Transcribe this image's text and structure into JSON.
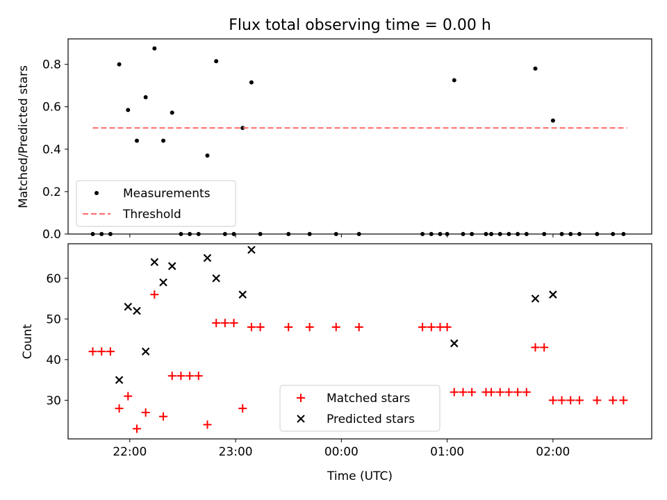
{
  "chart_data": [
    {
      "type": "scatter",
      "title": "Flux total observing time = 0.00 h",
      "xlabel": "",
      "ylabel": "Matched/Predicted stars",
      "xlim": [
        "21:25",
        "02:56"
      ],
      "ylim": [
        0.0,
        0.92
      ],
      "xticks": [
        "22:00",
        "23:00",
        "00:00",
        "01:00",
        "02:00"
      ],
      "yticks": [
        "0.0",
        "0.2",
        "0.4",
        "0.6",
        "0.8"
      ],
      "legend": "lower-left",
      "series": [
        {
          "name": "Measurements",
          "marker": "dot",
          "color": "#000000",
          "points": [
            [
              "21:39",
              0.0
            ],
            [
              "21:44",
              0.0
            ],
            [
              "21:49",
              0.0
            ],
            [
              "21:54",
              0.8
            ],
            [
              "21:59",
              0.585
            ],
            [
              "22:04",
              0.44
            ],
            [
              "22:09",
              0.645
            ],
            [
              "22:14",
              0.875
            ],
            [
              "22:19",
              0.44
            ],
            [
              "22:24",
              0.572
            ],
            [
              "22:29",
              0.0
            ],
            [
              "22:34",
              0.0
            ],
            [
              "22:39",
              0.0
            ],
            [
              "22:44",
              0.37
            ],
            [
              "22:49",
              0.815
            ],
            [
              "22:54",
              0.0
            ],
            [
              "22:59",
              0.0
            ],
            [
              "23:04",
              0.5
            ],
            [
              "23:09",
              0.715
            ],
            [
              "23:14",
              0.0
            ],
            [
              "23:30",
              0.0
            ],
            [
              "23:42",
              0.0
            ],
            [
              "23:57",
              0.0
            ],
            [
              "00:10",
              0.0
            ],
            [
              "00:46",
              0.0
            ],
            [
              "00:51",
              0.0
            ],
            [
              "00:56",
              0.0
            ],
            [
              "01:00",
              0.0
            ],
            [
              "01:04",
              0.725
            ],
            [
              "01:09",
              0.0
            ],
            [
              "01:14",
              0.0
            ],
            [
              "01:22",
              0.0
            ],
            [
              "01:25",
              0.0
            ],
            [
              "01:30",
              0.0
            ],
            [
              "01:35",
              0.0
            ],
            [
              "01:40",
              0.0
            ],
            [
              "01:45",
              0.0
            ],
            [
              "01:50",
              0.78
            ],
            [
              "01:55",
              0.0
            ],
            [
              "02:00",
              0.535
            ],
            [
              "02:05",
              0.0
            ],
            [
              "02:10",
              0.0
            ],
            [
              "02:15",
              0.0
            ],
            [
              "02:25",
              0.0
            ],
            [
              "02:34",
              0.0
            ],
            [
              "02:40",
              0.0
            ]
          ]
        },
        {
          "name": "Threshold",
          "marker": "dashed-line",
          "color": "#ff6666",
          "points": [
            [
              "21:39",
              0.5
            ],
            [
              "02:42",
              0.5
            ]
          ]
        }
      ]
    },
    {
      "type": "scatter",
      "title": "",
      "xlabel": "Time (UTC)",
      "ylabel": "Count",
      "xlim": [
        "21:25",
        "02:56"
      ],
      "ylim": [
        20.5,
        68.5
      ],
      "xticks": [
        "22:00",
        "23:00",
        "00:00",
        "01:00",
        "02:00"
      ],
      "yticks": [
        "30",
        "40",
        "50",
        "60"
      ],
      "legend": "lower-center",
      "series": [
        {
          "name": "Matched stars",
          "marker": "plus",
          "color": "#ff0000",
          "points": [
            [
              "21:39",
              42
            ],
            [
              "21:44",
              42
            ],
            [
              "21:49",
              42
            ],
            [
              "21:54",
              28
            ],
            [
              "21:59",
              31
            ],
            [
              "22:04",
              23
            ],
            [
              "22:09",
              27
            ],
            [
              "22:14",
              56
            ],
            [
              "22:19",
              26
            ],
            [
              "22:24",
              36
            ],
            [
              "22:29",
              36
            ],
            [
              "22:34",
              36
            ],
            [
              "22:39",
              36
            ],
            [
              "22:44",
              24
            ],
            [
              "22:49",
              49
            ],
            [
              "22:54",
              49
            ],
            [
              "22:59",
              49
            ],
            [
              "23:04",
              28
            ],
            [
              "23:09",
              48
            ],
            [
              "23:14",
              48
            ],
            [
              "23:30",
              48
            ],
            [
              "23:42",
              48
            ],
            [
              "23:57",
              48
            ],
            [
              "00:10",
              48
            ],
            [
              "00:46",
              48
            ],
            [
              "00:51",
              48
            ],
            [
              "00:56",
              48
            ],
            [
              "01:00",
              48
            ],
            [
              "01:04",
              32
            ],
            [
              "01:09",
              32
            ],
            [
              "01:14",
              32
            ],
            [
              "01:22",
              32
            ],
            [
              "01:25",
              32
            ],
            [
              "01:30",
              32
            ],
            [
              "01:35",
              32
            ],
            [
              "01:40",
              32
            ],
            [
              "01:45",
              32
            ],
            [
              "01:50",
              43
            ],
            [
              "01:55",
              43
            ],
            [
              "02:00",
              30
            ],
            [
              "02:05",
              30
            ],
            [
              "02:10",
              30
            ],
            [
              "02:15",
              30
            ],
            [
              "02:25",
              30
            ],
            [
              "02:34",
              30
            ],
            [
              "02:40",
              30
            ]
          ]
        },
        {
          "name": "Predicted stars",
          "marker": "x",
          "color": "#000000",
          "points": [
            [
              "21:54",
              35
            ],
            [
              "21:59",
              53
            ],
            [
              "22:04",
              52
            ],
            [
              "22:09",
              42
            ],
            [
              "22:14",
              64
            ],
            [
              "22:19",
              59
            ],
            [
              "22:24",
              63
            ],
            [
              "22:44",
              65
            ],
            [
              "22:49",
              60
            ],
            [
              "23:04",
              56
            ],
            [
              "23:09",
              67
            ],
            [
              "01:04",
              44
            ],
            [
              "01:50",
              55
            ],
            [
              "02:00",
              56
            ]
          ]
        }
      ]
    }
  ]
}
